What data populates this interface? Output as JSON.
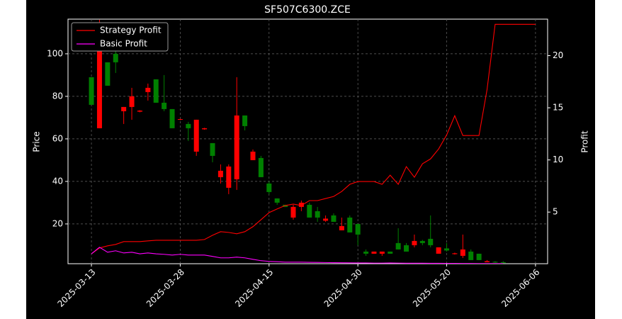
{
  "chart_data": {
    "type": "candlestick",
    "title": "SF507C6300.ZCE",
    "ylabel": "Price",
    "y2label": "Profit",
    "x": [
      0,
      1,
      2,
      3,
      4,
      5,
      6,
      7,
      8,
      9,
      10,
      11,
      12,
      13,
      14,
      15,
      16,
      17,
      18,
      19,
      20,
      21,
      22,
      23,
      24,
      25,
      26,
      27,
      28,
      29,
      30,
      31,
      32,
      33,
      34,
      35,
      36,
      37,
      38,
      39,
      40,
      41,
      42,
      43,
      44,
      45,
      46,
      47,
      48,
      49,
      50,
      51,
      52,
      53,
      54,
      55
    ],
    "xlim": [
      -2.9,
      56.5
    ],
    "xticks": [
      {
        "value": 0,
        "label": "2025-03-13"
      },
      {
        "value": 11,
        "label": "2025-03-28"
      },
      {
        "value": 22,
        "label": "2025-04-15"
      },
      {
        "value": 33,
        "label": "2025-04-30"
      },
      {
        "value": 44,
        "label": "2025-05-20"
      },
      {
        "value": 55,
        "label": "2025-06-06"
      }
    ],
    "ylim": [
      1.3,
      116.3
    ],
    "yticks": [
      20,
      40,
      60,
      80,
      100
    ],
    "y2lim": [
      0.05,
      23.5
    ],
    "y2ticks": [
      5,
      10,
      15,
      20
    ],
    "grid": true,
    "legend": "upper left",
    "up_color": "#ff0000",
    "down_color": "#008000",
    "open": [
      89,
      65,
      96,
      100,
      73,
      75,
      72.8,
      82,
      88,
      77,
      74,
      69,
      67,
      54,
      64.5,
      58,
      42,
      37,
      41,
      71,
      50,
      51,
      39,
      32,
      29,
      23,
      28,
      29,
      26,
      21.5,
      24,
      17,
      23,
      20,
      7,
      6,
      6,
      7,
      11,
      10,
      10,
      12,
      13,
      6,
      8.5,
      5.8,
      5,
      7,
      6,
      2,
      2.2,
      2,
      null,
      null,
      null,
      null
    ],
    "high": [
      89,
      116,
      96,
      105,
      75,
      84,
      73.5,
      86,
      88,
      90,
      74,
      69.5,
      68,
      69,
      65.2,
      58,
      48,
      48,
      89,
      71,
      55,
      52,
      40,
      32,
      29,
      29,
      31,
      30,
      28,
      24,
      25,
      23,
      24,
      20,
      8,
      7,
      7,
      7,
      18,
      11,
      15,
      12.5,
      24,
      9,
      11,
      6.5,
      15,
      8,
      6,
      3,
      2.5,
      2.5,
      null,
      null,
      null,
      null
    ],
    "low": [
      76,
      65,
      85,
      91,
      67,
      69,
      72.5,
      78,
      77,
      73,
      65,
      68.8,
      59,
      52,
      64.3,
      49,
      39,
      34,
      36,
      64,
      50,
      42,
      34,
      29,
      28,
      22,
      26,
      23,
      21,
      21,
      21,
      17,
      16,
      10,
      5,
      6,
      5,
      6,
      8,
      7,
      9,
      10,
      9,
      6,
      7,
      5.6,
      4,
      3,
      3,
      2,
      1.7,
      1.5,
      null,
      null,
      null,
      null
    ],
    "close": [
      76,
      110,
      85,
      96,
      75,
      80,
      73.3,
      84,
      77,
      74,
      65,
      69.3,
      65,
      69,
      65,
      52,
      45,
      47,
      71,
      66,
      54,
      42,
      35,
      30,
      28,
      28,
      30,
      23,
      23,
      22.5,
      21,
      19,
      16,
      15,
      6,
      7,
      7,
      6,
      8,
      7,
      12,
      11,
      10,
      9,
      7.5,
      6.2,
      8,
      3,
      3,
      2.5,
      1.8,
      1.6,
      null,
      null,
      null,
      null
    ],
    "series": [
      {
        "name": "Strategy Profit",
        "color": "#ff0000",
        "axis": "y2",
        "values": [
          1.0,
          1.56,
          1.76,
          1.9,
          2.17,
          2.17,
          2.17,
          2.24,
          2.3,
          2.3,
          2.3,
          2.3,
          2.3,
          2.3,
          2.37,
          2.78,
          3.12,
          3.05,
          2.92,
          3.12,
          3.6,
          4.27,
          4.95,
          5.3,
          5.63,
          5.76,
          5.63,
          6.1,
          6.1,
          6.3,
          6.5,
          6.98,
          7.66,
          7.93,
          7.93,
          7.93,
          7.66,
          8.54,
          7.66,
          9.36,
          8.34,
          9.63,
          10.1,
          11.05,
          12.4,
          14.24,
          12.34,
          12.34,
          12.34,
          16.75,
          23.0,
          23.0,
          23.0,
          23.0,
          23.0,
          23.0
        ]
      },
      {
        "name": "Basic Profit",
        "color": "#ff00ff",
        "axis": "y2",
        "values": [
          1.0,
          1.63,
          1.15,
          1.29,
          1.08,
          1.15,
          1.0,
          1.08,
          1.0,
          0.95,
          0.88,
          0.95,
          0.88,
          0.88,
          0.88,
          0.75,
          0.61,
          0.61,
          0.68,
          0.61,
          0.47,
          0.34,
          0.27,
          0.24,
          0.2,
          0.2,
          0.2,
          0.18,
          0.17,
          0.16,
          0.15,
          0.14,
          0.13,
          0.12,
          0.12,
          0.11,
          0.11,
          0.12,
          0.11,
          0.1,
          0.1,
          0.1,
          0.09,
          0.09,
          0.08,
          0.08,
          0.07,
          0.07,
          0.06,
          0.06,
          0.06,
          0.06,
          null,
          null,
          null,
          null
        ]
      }
    ]
  }
}
